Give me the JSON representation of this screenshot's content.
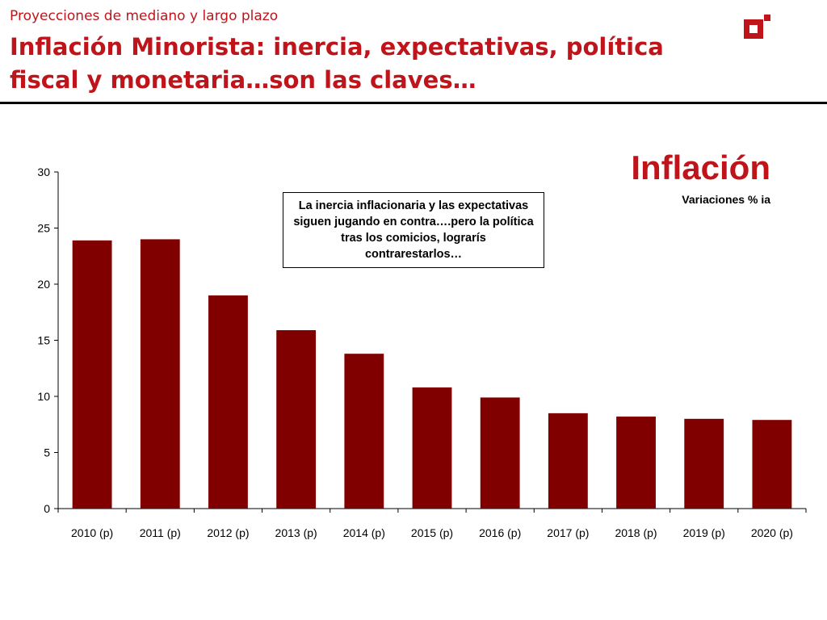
{
  "header": {
    "subtitle": "Proyecciones de mediano y largo plazo",
    "title": "Inflación Minorista: inercia, expectativas, política fiscal y monetaria…son las claves…",
    "brand_color": "#c0141b"
  },
  "logo": {
    "icon": "square-logo-icon"
  },
  "annotation": "La inercia inflacionaria y las expectativas siguen jugando en contra….pero la política tras los comicios, lograrís contrarestarlos…",
  "chart_data": {
    "type": "bar",
    "title": "Inflación",
    "subtitle": "Variaciones % ia",
    "categories": [
      "2010 (p)",
      "2011 (p)",
      "2012 (p)",
      "2013 (p)",
      "2014 (p)",
      "2015 (p)",
      "2016 (p)",
      "2017 (p)",
      "2018 (p)",
      "2019 (p)",
      "2020 (p)"
    ],
    "values": [
      23.9,
      24.0,
      19.0,
      15.9,
      13.8,
      10.8,
      9.9,
      8.5,
      8.2,
      8.0,
      7.9
    ],
    "ylim": [
      0,
      30
    ],
    "yticks": [
      0,
      5,
      10,
      15,
      20,
      25,
      30
    ],
    "bar_color": "#800000",
    "grid": false,
    "legend": "none"
  }
}
